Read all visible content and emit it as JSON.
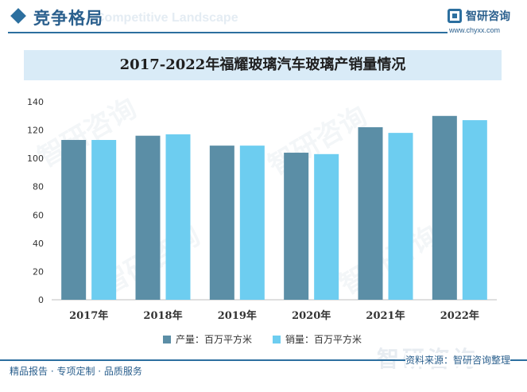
{
  "header": {
    "title": "竞争格局",
    "subtitle": "Competitive Landscape",
    "brand_name": "智研咨询",
    "brand_url": "www.chyxx.com"
  },
  "chart_data": {
    "type": "bar",
    "title": "2017-2022年福耀玻璃汽车玻璃产销量情况",
    "categories": [
      "2017年",
      "2018年",
      "2019年",
      "2020年",
      "2021年",
      "2022年"
    ],
    "series": [
      {
        "name": "产量：百万平方米",
        "color": "#5b8ea6",
        "values": [
          113,
          116,
          109,
          104,
          122,
          130
        ]
      },
      {
        "name": "销量：百万平方米",
        "color": "#6dcdf0",
        "values": [
          113,
          117,
          109,
          103,
          118,
          127
        ]
      }
    ],
    "ylim": [
      0,
      140
    ],
    "yticks": [
      0,
      20,
      40,
      60,
      80,
      100,
      120,
      140
    ],
    "grid": false,
    "legend_position": "bottom"
  },
  "footer": {
    "left_text": "精品报告 · 专项定制 · 品质服务",
    "source": "资料来源：智研咨询整理",
    "watermark": "智研咨询"
  }
}
